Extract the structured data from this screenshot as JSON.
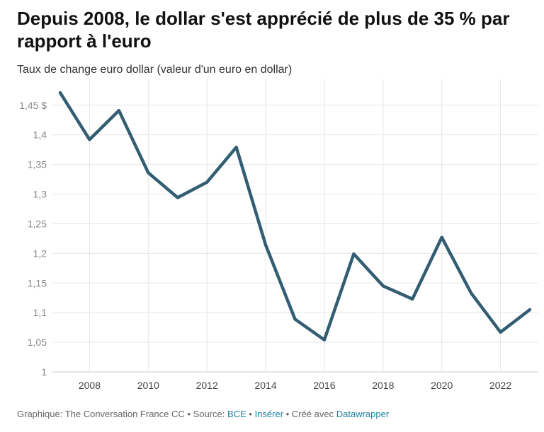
{
  "header": {
    "title": "Depuis 2008, le dollar s'est apprécié de plus de 35 % par rapport à l'euro",
    "subtitle": "Taux de change euro dollar (valeur d'un euro en dollar)"
  },
  "footer": {
    "credit": "Graphique: The Conversation France CC",
    "source_prefix": "Source:",
    "source_link": "BCE",
    "insert_link": "Insérer",
    "created_prefix": "Créé avec",
    "tool_link": "Datawrapper",
    "sep": "•"
  },
  "colors": {
    "line": "#335d73",
    "grid": "#e6e6e6",
    "tick": "#888888",
    "link": "#1d81a2"
  },
  "chart_data": {
    "type": "line",
    "title": "Depuis 2008, le dollar s'est apprécié de plus de 35 % par rapport à l'euro",
    "subtitle": "Taux de change euro dollar (valeur d'un euro en dollar)",
    "xlabel": "",
    "ylabel": "",
    "x": [
      2007,
      2008,
      2009,
      2010,
      2011,
      2012,
      2013,
      2014,
      2015,
      2016,
      2017,
      2018,
      2019,
      2020,
      2021,
      2022,
      2023
    ],
    "series": [
      {
        "values": [
          1.471,
          1.392,
          1.441,
          1.336,
          1.294,
          1.32,
          1.379,
          1.214,
          1.089,
          1.054,
          1.199,
          1.145,
          1.123,
          1.227,
          1.133,
          1.067,
          1.105
        ]
      }
    ],
    "xlim": [
      2007,
      2023
    ],
    "ylim": [
      1.0,
      1.47
    ],
    "x_ticks": [
      2008,
      2010,
      2012,
      2014,
      2016,
      2018,
      2020,
      2022
    ],
    "x_tick_labels": [
      "2008",
      "2010",
      "2012",
      "2014",
      "2016",
      "2018",
      "2020",
      "2022"
    ],
    "y_ticks": [
      1.0,
      1.05,
      1.1,
      1.15,
      1.2,
      1.25,
      1.3,
      1.35,
      1.4,
      1.45
    ],
    "y_tick_labels": [
      "1",
      "1,05",
      "1,1",
      "1,15",
      "1,2",
      "1,25",
      "1,3",
      "1,35",
      "1,4",
      "1,45 $"
    ],
    "grid": true,
    "legend": "none"
  }
}
